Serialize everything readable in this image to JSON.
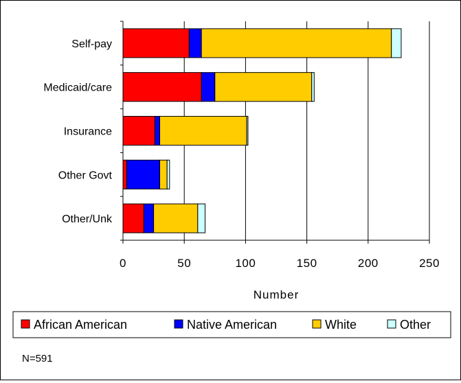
{
  "chart_data": {
    "type": "bar",
    "orientation": "horizontal",
    "stacked": true,
    "categories": [
      "Self-pay",
      "Medicaid/care",
      "Insurance",
      "Other Govt",
      "Other/Unk"
    ],
    "series": [
      {
        "name": "African American",
        "color": "#ff0000",
        "values": [
          54,
          64,
          26,
          3,
          17
        ]
      },
      {
        "name": "Native American",
        "color": "#0000ff",
        "values": [
          10,
          11,
          4,
          27,
          8
        ]
      },
      {
        "name": "White",
        "color": "#ffcc00",
        "values": [
          155,
          79,
          71,
          6,
          36
        ]
      },
      {
        "name": "Other",
        "color": "#ccffff",
        "values": [
          8,
          2,
          1,
          2,
          6
        ]
      }
    ],
    "xticks": [
      0,
      50,
      100,
      150,
      200,
      250
    ],
    "xlim": [
      0,
      250
    ],
    "xlabel": "Number",
    "ylabel": "",
    "title": "",
    "grid": "vertical",
    "legend_position": "bottom",
    "note": "N=591"
  }
}
